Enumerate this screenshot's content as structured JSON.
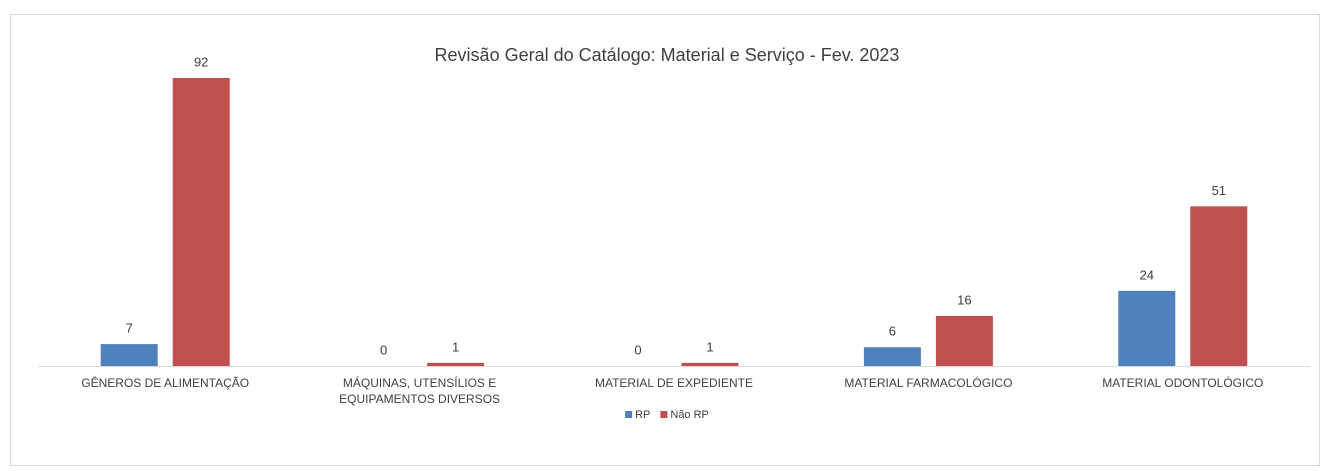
{
  "chart_data": {
    "type": "bar",
    "title": "Revisão Geral do Catálogo: Material e Serviço - Fev. 2023",
    "categories": [
      "GÊNEROS DE ALIMENTAÇÃO",
      "MÁQUINAS, UTENSÍLIOS E EQUIPAMENTOS DIVERSOS",
      "MATERIAL DE EXPEDIENTE",
      "MATERIAL FARMACOLÓGICO",
      "MATERIAL ODONTOLÓGICO"
    ],
    "series": [
      {
        "name": "RP",
        "color": "#4f81bd",
        "values": [
          7,
          0,
          0,
          6,
          24
        ]
      },
      {
        "name": "Não RP",
        "color": "#c0504d",
        "values": [
          92,
          1,
          1,
          16,
          51
        ]
      }
    ],
    "legend": "bottom"
  }
}
